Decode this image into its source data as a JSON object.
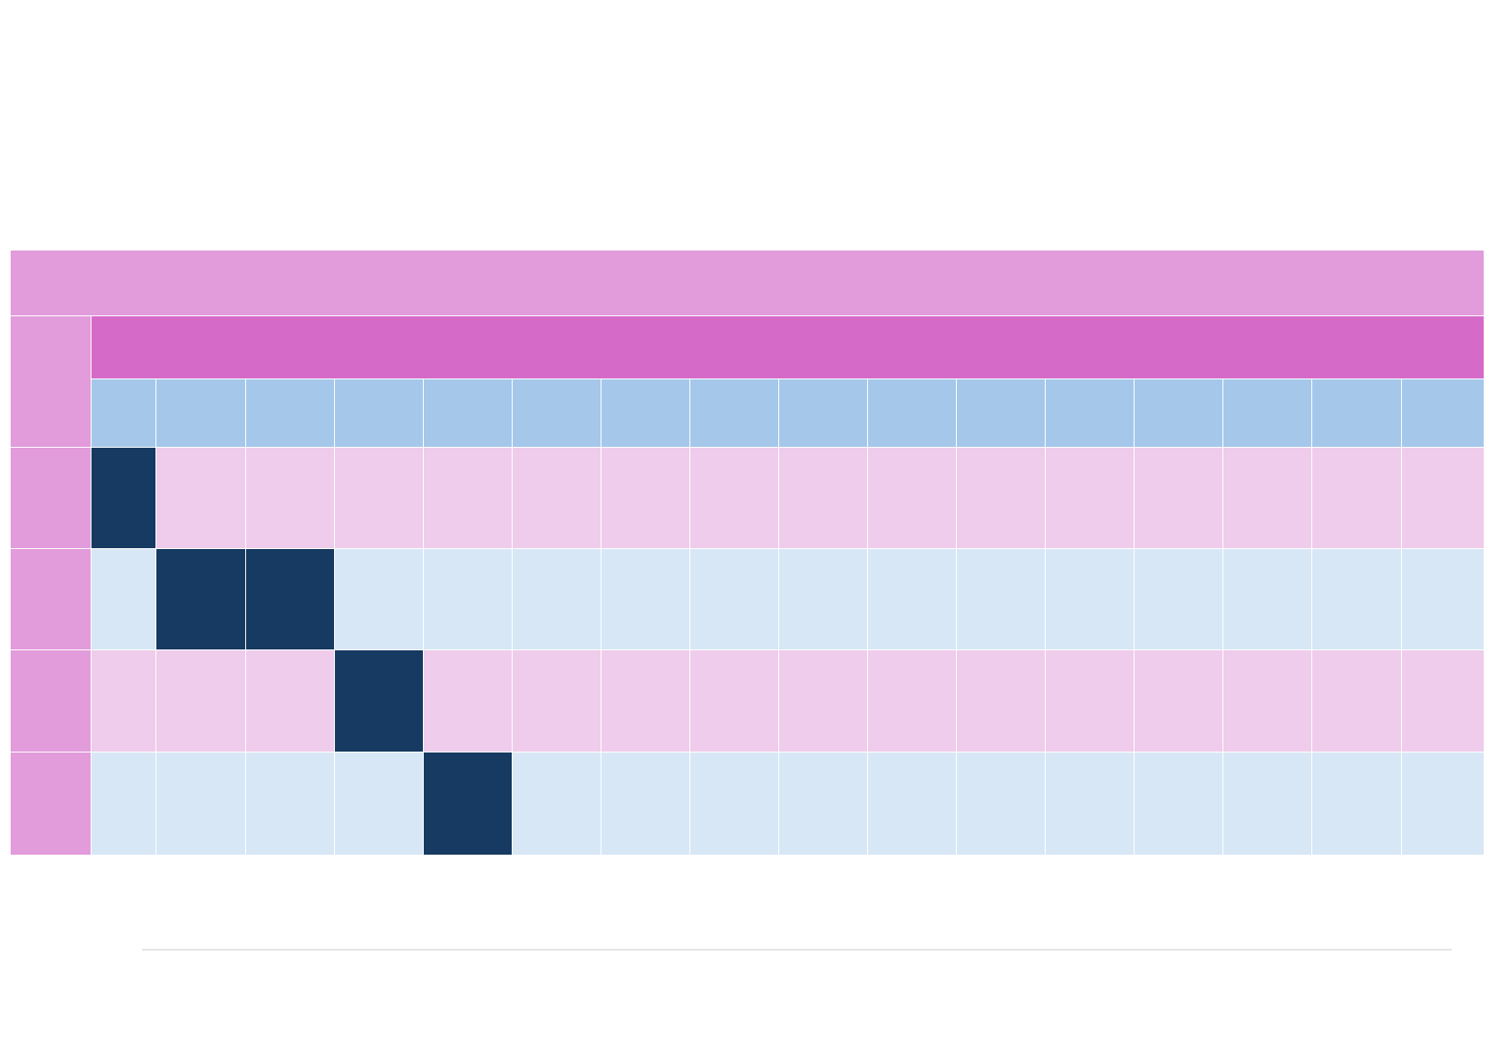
{
  "table": {
    "title": "",
    "subtitle": "",
    "row_headers": [
      "",
      "",
      "",
      ""
    ],
    "column_headers": [
      "",
      "",
      "",
      "",
      "",
      "",
      "",
      "",
      "",
      "",
      "",
      "",
      "",
      "",
      "",
      ""
    ],
    "cells": [
      [
        1,
        0,
        0,
        0,
        0,
        0,
        0,
        0,
        0,
        0,
        0,
        0,
        0,
        0,
        0,
        0
      ],
      [
        0,
        1,
        1,
        0,
        0,
        0,
        0,
        0,
        0,
        0,
        0,
        0,
        0,
        0,
        0,
        0
      ],
      [
        0,
        0,
        0,
        1,
        0,
        0,
        0,
        0,
        0,
        0,
        0,
        0,
        0,
        0,
        0,
        0
      ],
      [
        0,
        0,
        0,
        0,
        1,
        0,
        0,
        0,
        0,
        0,
        0,
        0,
        0,
        0,
        0,
        0
      ]
    ]
  },
  "colors": {
    "title_band": "#e29bdb",
    "subtitle_band": "#d56ac9",
    "row_header": "#e29bdb",
    "column_header": "#a5c8ea",
    "row_odd": "#efcceb",
    "row_even": "#d7e7f6",
    "highlight": "#163a61",
    "grid_line": "#ffffff",
    "footer_rule": "#e4e4e4"
  }
}
